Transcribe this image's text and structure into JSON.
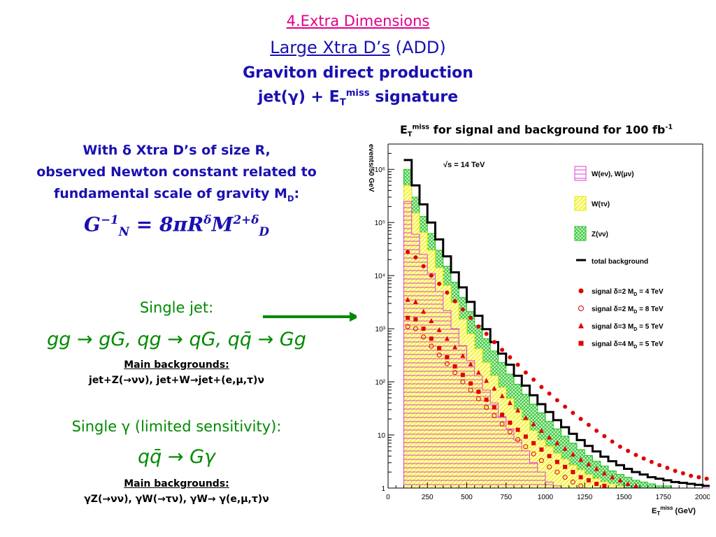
{
  "header": {
    "section": "4.Extra Dimensions",
    "model_underlined": "Large Xtra D’s",
    "model_paren": "(ADD)",
    "subtitle": "Graviton direct production",
    "signature_pre": "jet(γ) + E",
    "signature_sub": "T",
    "signature_sup": "miss",
    "signature_post": " signature"
  },
  "intro": {
    "line1": "With δ Xtra D’s of size R,",
    "line2": "observed Newton constant related to",
    "line3_pre": "fundamental scale of gravity M",
    "line3_sub": "D",
    "line3_post": ":"
  },
  "formula": {
    "g": "G",
    "g_sup": "−1",
    "g_sub": "N",
    "rhs": " = 8πR",
    "r_sup": "δ",
    "m": "M",
    "m_sup": "2+δ",
    "m_sub": "D"
  },
  "single_jet": {
    "title": "Single jet:",
    "process": "gg → gG, qg → qG, qq̄ → Gg",
    "mb_label": "Main backgrounds:",
    "mb_text": "jet+Z(→νν), jet+W→jet+(e,μ,τ)ν"
  },
  "single_gamma": {
    "title": "Single γ (limited sensitivity):",
    "process": "qq̄ → Gγ",
    "mb_label": "Main backgrounds:",
    "mb_text": "γZ(→νν), γW(→τν), γW→ γ(e,μ,τ)ν"
  },
  "chart_title": {
    "pre": "E",
    "sub": "T",
    "sup": "miss",
    "post": " for signal and background for 100 fb",
    "post_sup": "-1"
  },
  "chart_data": {
    "type": "line",
    "annotation": "√s = 14 TeV",
    "ylabel": "events/50 GeV",
    "xlabel_pre": "E",
    "xlabel_sub": "T",
    "xlabel_sup": "miss",
    "xlabel_post": " (GeV)",
    "xlim": [
      0,
      2000
    ],
    "ylim": [
      1,
      3000000
    ],
    "yscale": "log",
    "x_ticks": [
      "0",
      "250",
      "500",
      "750",
      "1000",
      "1250",
      "1500",
      "1750",
      "2000"
    ],
    "x_tick_values": [
      0,
      250,
      500,
      750,
      1000,
      1250,
      1500,
      1750,
      2000
    ],
    "y_ticks": [
      "1",
      "10",
      "10²",
      "10³",
      "10⁴",
      "10⁵",
      "10⁶"
    ],
    "y_tick_values": [
      1,
      10,
      100,
      1000,
      10000,
      100000,
      1000000
    ],
    "x": [
      100,
      150,
      200,
      250,
      300,
      350,
      400,
      450,
      500,
      550,
      600,
      650,
      700,
      750,
      800,
      850,
      900,
      950,
      1000,
      1050,
      1100,
      1150,
      1200,
      1250,
      1300,
      1350,
      1400,
      1450,
      1500,
      1550,
      1600,
      1650,
      1700,
      1750,
      1800,
      1850,
      1900,
      1950,
      2000
    ],
    "series": [
      {
        "name": "W(eν), W(μν)",
        "color": "#e040d0",
        "role": "stack",
        "values": [
          250000,
          60000,
          25000,
          11000,
          5000,
          2200,
          1000,
          480,
          250,
          130,
          70,
          40,
          22,
          13,
          8,
          5,
          3,
          2,
          1.3,
          1.1,
          1,
          1,
          1,
          1,
          1,
          1,
          1,
          1,
          1,
          1,
          1,
          1,
          1,
          1,
          1,
          1,
          1,
          1,
          1
        ]
      },
      {
        "name": "W(τν)",
        "color": "#e6e600",
        "role": "stack",
        "values": [
          500000,
          150000,
          65000,
          30000,
          14000,
          6500,
          3100,
          1500,
          800,
          420,
          230,
          130,
          78,
          48,
          30,
          19,
          12,
          8,
          6,
          4.5,
          3.5,
          2.7,
          2.2,
          1.8,
          1.5,
          1.3,
          1.2,
          1.1,
          1,
          1,
          1,
          1,
          1,
          1,
          1,
          1,
          1,
          1,
          1
        ]
      },
      {
        "name": "Z(νν)",
        "color": "#20c020",
        "role": "stack",
        "values": [
          1000000,
          300000,
          130000,
          62000,
          30000,
          15000,
          7500,
          3900,
          2100,
          1150,
          650,
          380,
          230,
          140,
          90,
          58,
          38,
          26,
          18,
          13,
          9.5,
          7,
          5.3,
          4.1,
          3.2,
          2.6,
          2.1,
          1.8,
          1.6,
          1.4,
          1.3,
          1.2,
          1.1,
          1.1,
          1,
          1,
          1,
          1,
          1
        ]
      },
      {
        "name": "total background",
        "color": "#000000",
        "role": "line",
        "values": [
          1500000,
          500000,
          220000,
          100000,
          48000,
          23000,
          11500,
          6000,
          3200,
          1750,
          980,
          560,
          340,
          210,
          130,
          85,
          56,
          38,
          27,
          19,
          14,
          10.5,
          8,
          6.2,
          4.9,
          3.9,
          3.2,
          2.7,
          2.3,
          2,
          1.8,
          1.6,
          1.5,
          1.4,
          1.3,
          1.25,
          1.2,
          1.15,
          1.1
        ]
      },
      {
        "name": "signal δ=2 M_D = 4 TeV",
        "legend_pre": "signal δ=2  M",
        "legend_sub": "D",
        "legend_post": " = 4 TeV",
        "color": "#e00000",
        "marker": "filled-circle",
        "values": [
          28000,
          22000,
          15000,
          10000,
          7000,
          4800,
          3300,
          2300,
          1600,
          1100,
          800,
          560,
          400,
          290,
          210,
          150,
          110,
          80,
          60,
          45,
          34,
          26,
          20,
          15.5,
          12,
          9.5,
          7.5,
          6,
          5,
          4.2,
          3.6,
          3.1,
          2.7,
          2.4,
          2.1,
          1.9,
          1.7,
          1.6,
          1.5
        ]
      },
      {
        "name": "signal δ=2 M_D = 8 TeV",
        "legend_pre": "signal δ=2  M",
        "legend_sub": "D",
        "legend_post": " = 8 TeV",
        "color": "#e00000",
        "marker": "open-circle",
        "values": [
          1100,
          1000,
          700,
          470,
          320,
          220,
          150,
          100,
          70,
          48,
          33,
          23,
          16,
          11.5,
          8.2,
          6,
          4.4,
          3.3,
          2.5,
          2,
          1.6,
          1.3,
          1.1,
          1,
          1,
          1,
          1,
          1,
          1,
          1,
          1,
          1,
          1,
          1,
          1,
          1,
          1,
          1,
          1
        ]
      },
      {
        "name": "signal δ=3 M_D = 5 TeV",
        "legend_pre": "signal δ=3  M",
        "legend_sub": "D",
        "legend_post": " = 5 TeV",
        "color": "#e00000",
        "marker": "triangle",
        "values": [
          3500,
          3200,
          2100,
          1400,
          950,
          650,
          450,
          310,
          215,
          150,
          105,
          75,
          54,
          40,
          29,
          21,
          16,
          12,
          9,
          7,
          5.5,
          4.3,
          3.4,
          2.8,
          2.3,
          1.9,
          1.6,
          1.4,
          1.2,
          1.1,
          1,
          1,
          1,
          1,
          1,
          1,
          1,
          1,
          1
        ]
      },
      {
        "name": "signal δ=4 M_D = 5 TeV",
        "legend_pre": "signal δ=4  M",
        "legend_sub": "D",
        "legend_post": " = 5 TeV",
        "color": "#e00000",
        "marker": "square",
        "values": [
          1600,
          1500,
          1000,
          650,
          430,
          290,
          195,
          135,
          93,
          65,
          46,
          33,
          24,
          17,
          12.5,
          9.3,
          7,
          5.3,
          4,
          3.1,
          2.5,
          2,
          1.6,
          1.4,
          1.2,
          1.1,
          1,
          1,
          1,
          1,
          1,
          1,
          1,
          1,
          1,
          1,
          1,
          1,
          1
        ]
      }
    ]
  }
}
